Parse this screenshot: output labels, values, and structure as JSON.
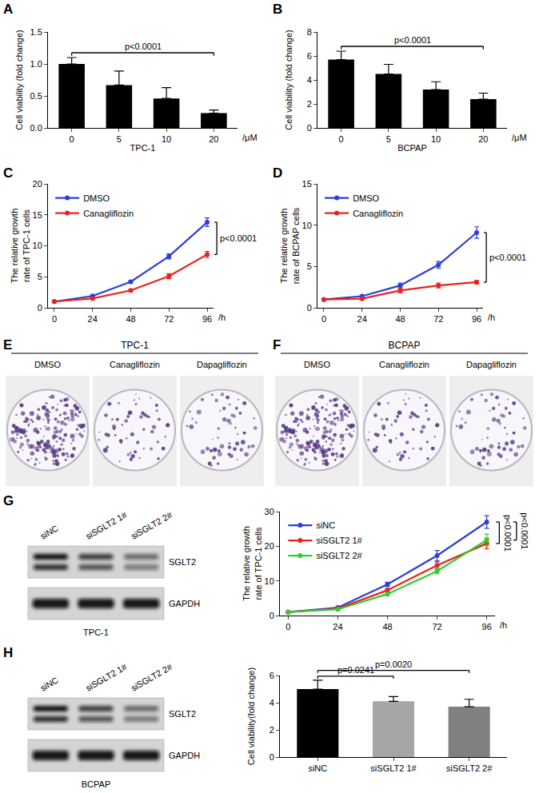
{
  "chart_data": [
    {
      "panel": "A",
      "type": "bar",
      "categories": [
        "0",
        "5",
        "10",
        "20"
      ],
      "values": [
        1.0,
        0.67,
        0.46,
        0.23
      ],
      "errors": [
        0.1,
        0.22,
        0.17,
        0.05
      ],
      "color": "#000000",
      "xlabel": "TPC-1",
      "x_unit": "/μM",
      "ylabel": "Cell viability (fold change)",
      "ylim": [
        0,
        1.5
      ],
      "yticks": [
        {
          "value": 0,
          "label": "0.0"
        },
        {
          "value": 0.5,
          "label": "0.5"
        },
        {
          "value": 1,
          "label": "1.0"
        },
        {
          "value": 1.5,
          "label": "1.5"
        }
      ],
      "grid": false,
      "annotations": [
        {
          "text": "p<0.0001",
          "between": [
            "0",
            "20"
          ]
        }
      ]
    },
    {
      "panel": "B",
      "type": "bar",
      "categories": [
        "0",
        "5",
        "10",
        "20"
      ],
      "values": [
        5.7,
        4.5,
        3.2,
        2.4
      ],
      "errors": [
        0.7,
        0.8,
        0.65,
        0.5
      ],
      "color": "#000000",
      "xlabel": "BCPAP",
      "x_unit": "/μM",
      "ylabel": "Cell viability (fold change)",
      "ylim": [
        0,
        8
      ],
      "yticks": [
        0,
        2,
        4,
        6,
        8
      ],
      "grid": false,
      "annotations": [
        {
          "text": "p<0.0001",
          "between": [
            "0",
            "20"
          ]
        }
      ]
    },
    {
      "panel": "C",
      "type": "line",
      "x": [
        0,
        24,
        48,
        72,
        96
      ],
      "xlim": [
        -4,
        100
      ],
      "xticks": [
        0,
        24,
        48,
        72,
        96
      ],
      "x_unit": "/h",
      "ylabel": "The relative growth rate of TPC-1 cells",
      "ylim": [
        0,
        20
      ],
      "yticks": [
        0,
        5,
        10,
        15,
        20
      ],
      "grid": false,
      "legend": "top-left",
      "marker": "circle",
      "series": [
        {
          "name": "DMSO",
          "color": "#2b3fd8",
          "values": [
            1,
            1.9,
            4.2,
            8.3,
            13.8
          ],
          "errors": [
            0.05,
            0.15,
            0.2,
            0.4,
            0.7
          ]
        },
        {
          "name": "Canagliflozin",
          "color": "#e8231f",
          "values": [
            1,
            1.5,
            2.8,
            5.1,
            8.6
          ],
          "errors": [
            0.05,
            0.1,
            0.2,
            0.4,
            0.5
          ]
        }
      ],
      "annotations": [
        {
          "text": "p<0.0001",
          "between": [
            "DMSO",
            "Canagliflozin"
          ]
        }
      ]
    },
    {
      "panel": "D",
      "type": "line",
      "x": [
        0,
        24,
        48,
        72,
        96
      ],
      "xlim": [
        -4,
        100
      ],
      "xticks": [
        0,
        24,
        48,
        72,
        96
      ],
      "x_unit": "/h",
      "ylabel": "The relative growth rate of BCPAP cells",
      "ylim": [
        0,
        15
      ],
      "yticks": [
        0,
        5,
        10,
        15
      ],
      "grid": false,
      "legend": "top-left",
      "marker": "circle",
      "series": [
        {
          "name": "DMSO",
          "color": "#2b3fd8",
          "values": [
            1,
            1.4,
            2.7,
            5.2,
            9.1
          ],
          "errors": [
            0.05,
            0.1,
            0.3,
            0.4,
            0.7
          ]
        },
        {
          "name": "Canagliflozin",
          "color": "#e8231f",
          "values": [
            1,
            1.1,
            2.1,
            2.7,
            3.1
          ],
          "errors": [
            0.05,
            0.1,
            0.3,
            0.3,
            0.2
          ]
        }
      ],
      "annotations": [
        {
          "text": "p<0.0001",
          "between": [
            "DMSO",
            "Canagliflozin"
          ]
        }
      ]
    },
    {
      "panel": "E",
      "type": "colony_plates",
      "title": "TPC-1",
      "labels": [
        "DMSO",
        "Canagliflozin",
        "Dapagliflozin"
      ]
    },
    {
      "panel": "F",
      "type": "colony_plates",
      "title": "BCPAP",
      "labels": [
        "DMSO",
        "Canagliflozin",
        "Dapagliflozin"
      ]
    },
    {
      "panel": "G",
      "type": "western_blot",
      "lanes": [
        "siNC",
        "siSGLT2 1#",
        "siSGLT2 2#"
      ],
      "bands": [
        "SGLT2",
        "GAPDH"
      ],
      "caption": "TPC-1"
    },
    {
      "type": "line",
      "x": [
        0,
        24,
        48,
        72,
        96
      ],
      "xlim": [
        -4,
        100
      ],
      "xticks": [
        0,
        24,
        48,
        72,
        96
      ],
      "x_unit": "/h",
      "ylabel": "The relative growth rate of TPC-1 cells",
      "ylim": [
        0,
        30
      ],
      "yticks": [
        0,
        10,
        20,
        30
      ],
      "grid": false,
      "legend": "top-left",
      "marker": "circle",
      "series": [
        {
          "name": "siNC",
          "color": "#2b3fd8",
          "values": [
            1,
            2.3,
            9,
            17.3,
            27
          ],
          "errors": [
            0.05,
            0.2,
            0.6,
            1.5,
            1.8
          ]
        },
        {
          "name": "siSGLT2 1#",
          "color": "#e8231f",
          "values": [
            1,
            2.0,
            7.3,
            14.5,
            20.8
          ],
          "errors": [
            0.05,
            0.2,
            0.5,
            1.0,
            1.5
          ]
        },
        {
          "name": "siSGLT2 2#",
          "color": "#33cc33",
          "values": [
            1,
            1.8,
            6.2,
            12.8,
            21.8
          ],
          "errors": [
            0.05,
            0.2,
            0.5,
            0.8,
            1.7
          ]
        }
      ],
      "annotations": [
        {
          "text": "p<0.0001",
          "between": [
            "siNC",
            "siSGLT2 1#"
          ]
        },
        {
          "text": "p<0.0001",
          "between": [
            "siNC",
            "siSGLT2 2#"
          ]
        }
      ]
    },
    {
      "panel": "H",
      "type": "western_blot",
      "lanes": [
        "siNC",
        "siSGLT2 1#",
        "siSGLT2 2#"
      ],
      "bands": [
        "SGLT2",
        "GAPDH"
      ],
      "caption": "BCPAP"
    },
    {
      "type": "bar",
      "categories": [
        "siNC",
        "siSGLT2 1#",
        "siSGLT2 2#"
      ],
      "values": [
        5.0,
        4.1,
        3.7
      ],
      "errors": [
        0.65,
        0.35,
        0.55
      ],
      "colors": [
        "#000000",
        "#a6a6a6",
        "#808080"
      ],
      "ylabel": "Cell viability(fold change)",
      "ylim": [
        0,
        6
      ],
      "yticks": [
        0,
        2,
        4,
        6
      ],
      "grid": false,
      "annotations": [
        {
          "text": "p=0.0241",
          "between": [
            "siNC",
            "siSGLT2 1#"
          ]
        },
        {
          "text": "p=0.0020",
          "between": [
            "siNC",
            "siSGLT2 2#"
          ]
        }
      ]
    }
  ]
}
